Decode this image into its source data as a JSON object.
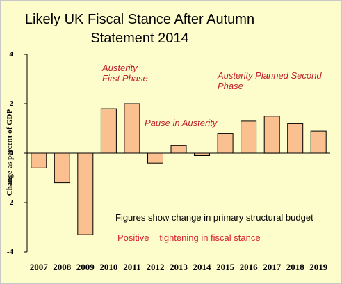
{
  "chart_data": {
    "type": "bar",
    "title_lines": [
      "Likely UK Fiscal Stance After Autumn",
      "Statement 2014"
    ],
    "ylabel": "Change as percent of GDP",
    "xlabel": "",
    "ylim": [
      -4,
      4
    ],
    "yticks": [
      "4",
      "2",
      "0",
      "-2",
      "-4"
    ],
    "grid": false,
    "categories": [
      "2007",
      "2008",
      "2009",
      "2010",
      "2011",
      "2012",
      "2013",
      "2014",
      "2015",
      "2016",
      "2017",
      "2018",
      "2019"
    ],
    "values": [
      -0.6,
      -1.2,
      -3.3,
      1.8,
      2.0,
      -0.4,
      0.3,
      -0.1,
      0.8,
      1.3,
      1.5,
      1.2,
      0.9
    ],
    "annotations": {
      "first_phase_1": "Austerity",
      "first_phase_2": "First Phase",
      "pause": "Pause in Austerity",
      "second_phase_1": "Austerity Planned Second",
      "second_phase_2": "Phase",
      "note_1": "Figures show change in primary structural budget",
      "note_2": "Positive = tightening in fiscal stance"
    },
    "colors": {
      "background": "#FDFDCB",
      "bar_fill": "#FAC090",
      "bar_stroke": "#000000",
      "annotation_red": "#C0202C"
    }
  }
}
